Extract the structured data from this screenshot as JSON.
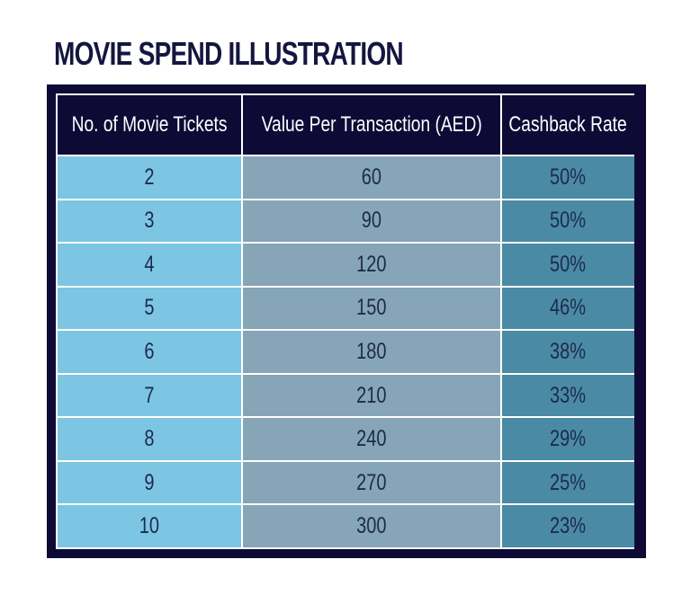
{
  "chart_data": {
    "type": "table",
    "title": "MOVIE SPEND ILLUSTRATION",
    "columns": [
      "No. of Movie Tickets",
      "Value Per Transaction (AED)",
      "Cashback Rate"
    ],
    "rows": [
      [
        "2",
        "60",
        "50%"
      ],
      [
        "3",
        "90",
        "50%"
      ],
      [
        "4",
        "120",
        "50%"
      ],
      [
        "5",
        "150",
        "46%"
      ],
      [
        "6",
        "180",
        "38%"
      ],
      [
        "7",
        "210",
        "33%"
      ],
      [
        "8",
        "240",
        "29%"
      ],
      [
        "9",
        "270",
        "25%"
      ],
      [
        "10",
        "300",
        "23%"
      ]
    ]
  },
  "colors": {
    "title": "#14163f",
    "frame": "#0d0b36",
    "header_bg": "#0d0b36",
    "header_text": "#ffffff",
    "col_tickets_bg": "#7cc6e4",
    "col_value_bg": "#86a5b6",
    "col_cashback_bg": "#4a8aa5",
    "body_text": "#1e2a4a"
  }
}
